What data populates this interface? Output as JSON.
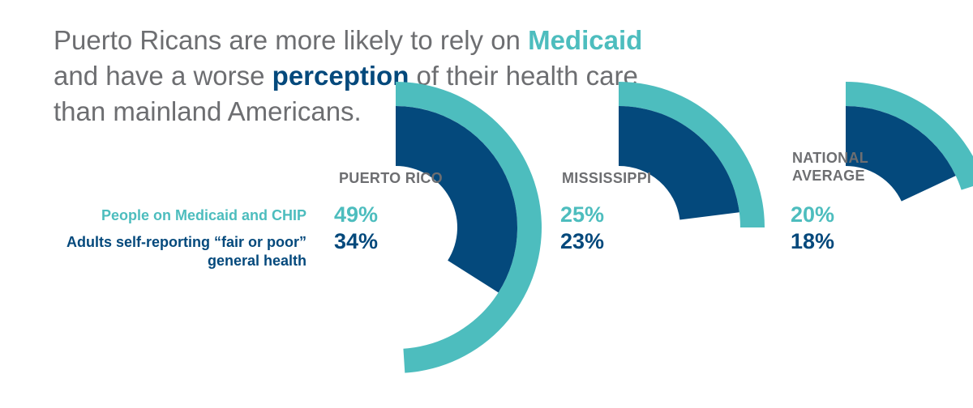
{
  "headline": {
    "part1": "Puerto Ricans are more likely to rely on ",
    "emph1": "Medicaid",
    "part2": " and have a worse ",
    "emph2": "perception",
    "part3": " of their health care than mainland Americans."
  },
  "colors": {
    "medicaid": "#4dbdbe",
    "fair_poor": "#04497c",
    "text": "#6d6e71"
  },
  "chart_data": {
    "type": "radial-bar",
    "series": [
      {
        "name": "People on Medicaid and CHIP",
        "color": "#4dbdbe"
      },
      {
        "name": "Adults self-reporting “fair or poor” general health",
        "color": "#04497c"
      }
    ],
    "groups": [
      {
        "name": "PUERTO RICO",
        "values": [
          49,
          34
        ],
        "labels": [
          "49%",
          "34%"
        ]
      },
      {
        "name": "MISSISSIPPI",
        "values": [
          25,
          23
        ],
        "labels": [
          "25%",
          "23%"
        ]
      },
      {
        "name": "NATIONAL\nAVERAGE",
        "values": [
          20,
          18
        ],
        "labels": [
          "20%",
          "18%"
        ]
      }
    ]
  }
}
